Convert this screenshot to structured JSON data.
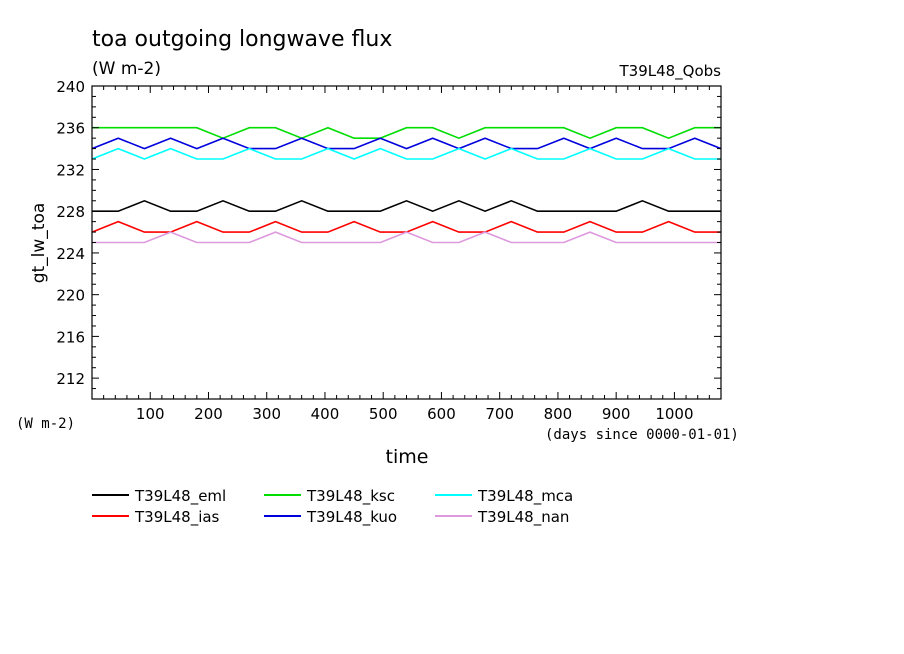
{
  "chart_data": {
    "type": "line",
    "title": "toa outgoing longwave flux",
    "subtitle": "(W m-2)",
    "run_label": "T39L48_Qobs",
    "xlabel": "time",
    "x_units": "(days since 0000-01-01)",
    "ylabel": "gt_lw_toa",
    "y_units": "(W m-2)",
    "xlim": [
      0,
      1080
    ],
    "ylim": [
      210,
      240
    ],
    "x_ticks": [
      100,
      200,
      300,
      400,
      500,
      600,
      700,
      800,
      900,
      1000
    ],
    "y_ticks": [
      212,
      216,
      220,
      224,
      228,
      232,
      236,
      240
    ],
    "grid": false,
    "legend_position": "bottom",
    "series": [
      {
        "name": "T39L48_eml",
        "color": "#000000",
        "x": [
          0,
          45,
          90,
          135,
          180,
          225,
          270,
          315,
          360,
          405,
          450,
          495,
          540,
          585,
          630,
          675,
          720,
          765,
          810,
          855,
          900,
          945,
          990,
          1035,
          1080
        ],
        "y": [
          228,
          228,
          229,
          228,
          228,
          229,
          228,
          228,
          229,
          228,
          228,
          228,
          229,
          228,
          229,
          228,
          229,
          228,
          228,
          228,
          228,
          229,
          228,
          228,
          228
        ]
      },
      {
        "name": "T39L48_ias",
        "color": "#ff0000",
        "x": [
          0,
          45,
          90,
          135,
          180,
          225,
          270,
          315,
          360,
          405,
          450,
          495,
          540,
          585,
          630,
          675,
          720,
          765,
          810,
          855,
          900,
          945,
          990,
          1035,
          1080
        ],
        "y": [
          226,
          227,
          226,
          226,
          227,
          226,
          226,
          227,
          226,
          226,
          227,
          226,
          226,
          227,
          226,
          226,
          227,
          226,
          226,
          227,
          226,
          226,
          227,
          226,
          226
        ]
      },
      {
        "name": "T39L48_ksc",
        "color": "#00dd00",
        "x": [
          0,
          45,
          90,
          135,
          180,
          225,
          270,
          315,
          360,
          405,
          450,
          495,
          540,
          585,
          630,
          675,
          720,
          765,
          810,
          855,
          900,
          945,
          990,
          1035,
          1080
        ],
        "y": [
          236,
          236,
          236,
          236,
          236,
          235,
          236,
          236,
          235,
          236,
          235,
          235,
          236,
          236,
          235,
          236,
          236,
          236,
          236,
          235,
          236,
          236,
          235,
          236,
          236
        ]
      },
      {
        "name": "T39L48_kuo",
        "color": "#0000dd",
        "x": [
          0,
          45,
          90,
          135,
          180,
          225,
          270,
          315,
          360,
          405,
          450,
          495,
          540,
          585,
          630,
          675,
          720,
          765,
          810,
          855,
          900,
          945,
          990,
          1035,
          1080
        ],
        "y": [
          234,
          235,
          234,
          235,
          234,
          235,
          234,
          234,
          235,
          234,
          234,
          235,
          234,
          235,
          234,
          235,
          234,
          234,
          235,
          234,
          235,
          234,
          234,
          235,
          234
        ]
      },
      {
        "name": "T39L48_mca",
        "color": "#00ffff",
        "x": [
          0,
          45,
          90,
          135,
          180,
          225,
          270,
          315,
          360,
          405,
          450,
          495,
          540,
          585,
          630,
          675,
          720,
          765,
          810,
          855,
          900,
          945,
          990,
          1035,
          1080
        ],
        "y": [
          233,
          234,
          233,
          234,
          233,
          233,
          234,
          233,
          233,
          234,
          233,
          234,
          233,
          233,
          234,
          233,
          234,
          233,
          233,
          234,
          233,
          233,
          234,
          233,
          233
        ]
      },
      {
        "name": "T39L48_nan",
        "color": "#dd99dd",
        "x": [
          0,
          45,
          90,
          135,
          180,
          225,
          270,
          315,
          360,
          405,
          450,
          495,
          540,
          585,
          630,
          675,
          720,
          765,
          810,
          855,
          900,
          945,
          990,
          1035,
          1080
        ],
        "y": [
          225,
          225,
          225,
          226,
          225,
          225,
          225,
          226,
          225,
          225,
          225,
          225,
          226,
          225,
          225,
          226,
          225,
          225,
          225,
          226,
          225,
          225,
          225,
          225,
          225
        ]
      }
    ]
  }
}
